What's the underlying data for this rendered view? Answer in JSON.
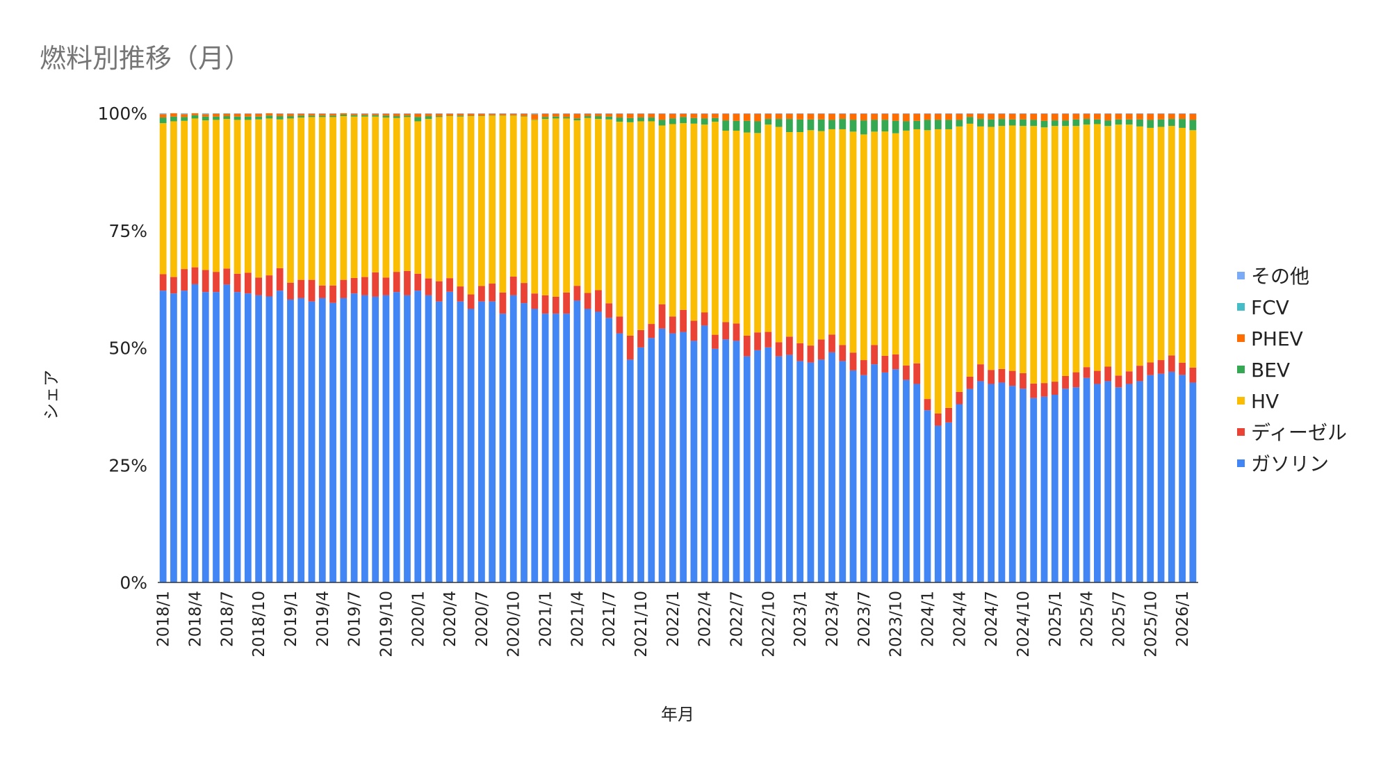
{
  "chart_data": {
    "type": "bar",
    "stacked": "percent",
    "title": "燃料別推移（月）",
    "xlabel": "年月",
    "ylabel": "シェア",
    "ylim": [
      0,
      100
    ],
    "y_ticks": [
      "0%",
      "25%",
      "50%",
      "75%",
      "100%"
    ],
    "grid": false,
    "legend_position": "right",
    "legend_order": [
      "その他",
      "FCV",
      "PHEV",
      "BEV",
      "HV",
      "ディーゼル",
      "ガソリン"
    ],
    "start_year": 2018,
    "start_month": 1,
    "label_every": 3,
    "series": [
      {
        "name": "ガソリン",
        "color": "#4285f4",
        "values": [
          62.2,
          61.6,
          62.2,
          63.5,
          61.9,
          61.9,
          63.5,
          61.9,
          61.6,
          61.2,
          60.9,
          62.2,
          60.3,
          60.6,
          59.9,
          60.6,
          59.6,
          60.6,
          61.6,
          61.2,
          60.9,
          61.2,
          61.9,
          61.2,
          62.2,
          61.2,
          59.9,
          61.9,
          59.9,
          58.3,
          59.9,
          59.9,
          57.3,
          61.2,
          59.6,
          58.3,
          57.3,
          57.3,
          57.3,
          60.6,
          58.3,
          57.7,
          56.4,
          53.1,
          47.5,
          50.1,
          52.1,
          54.1,
          53.1,
          53.4,
          51.5,
          54.7,
          49.8,
          51.8,
          51.5,
          48.2,
          49.5,
          50.1,
          48.2,
          48.5,
          47.2,
          46.9,
          47.5,
          49.1,
          47.2,
          45.2,
          44.2,
          46.5,
          45.2,
          45.9,
          43.3,
          42.3,
          36.7,
          33.4,
          34.1,
          38.0,
          41.0,
          42.9,
          42.3,
          42.6,
          41.9,
          41.3,
          39.3,
          39.6,
          40.0,
          41.3,
          41.6,
          43.6,
          42.3,
          42.9,
          41.6,
          42.3,
          42.9,
          44.2,
          44.5,
          44.9,
          44.2,
          42.6
        ]
      },
      {
        "name": "ディーゼル",
        "color": "#ea4335",
        "values": [
          3.5,
          3.5,
          4.6,
          3.6,
          4.7,
          4.3,
          3.4,
          3.9,
          4.4,
          3.8,
          4.5,
          4.8,
          3.6,
          3.9,
          4.6,
          2.7,
          3.7,
          3.9,
          3.3,
          3.9,
          5.2,
          3.8,
          4.3,
          5.2,
          3.6,
          3.6,
          4.3,
          2.9,
          3.2,
          3.1,
          3.3,
          3.8,
          4.5,
          4.0,
          4.3,
          3.3,
          3.9,
          3.6,
          4.5,
          3.2,
          3.4,
          4.6,
          3.1,
          3.6,
          5.1,
          3.7,
          3.0,
          5.2,
          3.6,
          4.7,
          4.3,
          2.8,
          3.0,
          3.7,
          3.7,
          4.4,
          3.8,
          3.3,
          3.0,
          3.9,
          3.8,
          3.6,
          4.3,
          3.8,
          3.4,
          3.8,
          3.2,
          4.1,
          3.6,
          3.2,
          3.1,
          4.4,
          2.4,
          2.6,
          3.1,
          2.6,
          2.6,
          3.6,
          3.0,
          2.9,
          3.2,
          3.3,
          3.1,
          2.9,
          2.8,
          2.7,
          3.2,
          2.3,
          2.8,
          3.1,
          2.5,
          2.7,
          3.3,
          2.7,
          2.9,
          3.5,
          2.6,
          3.2
        ]
      },
      {
        "name": "HV",
        "color": "#fbbc04",
        "values": [
          32.2,
          33.2,
          31.6,
          31.7,
          31.9,
          32.4,
          31.9,
          32.8,
          32.6,
          33.7,
          33.4,
          31.7,
          35.0,
          34.6,
          34.7,
          35.9,
          35.9,
          34.9,
          34.4,
          34.2,
          33.2,
          34.1,
          32.8,
          32.8,
          32.5,
          34.0,
          35.0,
          34.5,
          36.2,
          38.0,
          36.2,
          35.8,
          37.7,
          34.3,
          35.5,
          37.0,
          37.6,
          38.0,
          37.1,
          35.6,
          37.3,
          36.5,
          39.2,
          41.5,
          45.5,
          44.5,
          43.2,
          38.1,
          41.0,
          39.8,
          42.0,
          40.0,
          45.4,
          40.8,
          41.1,
          43.3,
          42.5,
          44.2,
          45.9,
          43.6,
          45.0,
          45.9,
          44.4,
          43.8,
          46.0,
          47.1,
          48.1,
          45.5,
          48.3,
          47.6,
          50.2,
          49.9,
          57.3,
          60.6,
          59.4,
          56.6,
          53.6,
          50.7,
          51.8,
          51.8,
          52.3,
          52.7,
          54.9,
          54.5,
          54.5,
          53.3,
          52.5,
          51.7,
          52.6,
          51.3,
          53.5,
          52.6,
          51.0,
          50.0,
          49.7,
          48.9,
          50.0,
          50.6
        ]
      },
      {
        "name": "BEV",
        "color": "#34a853",
        "values": [
          1.2,
          1.0,
          0.8,
          0.7,
          0.8,
          0.7,
          0.6,
          0.7,
          0.7,
          0.6,
          0.6,
          0.7,
          0.5,
          0.4,
          0.3,
          0.3,
          0.3,
          0.3,
          0.3,
          0.3,
          0.3,
          0.4,
          0.4,
          0.3,
          0.9,
          0.6,
          0.2,
          0.1,
          0.2,
          0.1,
          0.1,
          0.1,
          0.1,
          0.1,
          0.1,
          0.1,
          0.4,
          0.4,
          0.3,
          0.4,
          0.4,
          0.6,
          0.6,
          0.9,
          0.9,
          0.8,
          0.8,
          1.2,
          1.2,
          1.3,
          1.2,
          1.3,
          0.8,
          2.2,
          2.1,
          2.5,
          2.5,
          1.2,
          1.7,
          2.8,
          2.7,
          2.3,
          2.5,
          2.0,
          2.2,
          2.5,
          3.0,
          2.5,
          2.5,
          2.7,
          2.0,
          1.8,
          2.2,
          2.0,
          2.0,
          1.4,
          1.4,
          1.6,
          1.6,
          1.5,
          1.3,
          1.4,
          1.3,
          1.4,
          1.2,
          1.2,
          1.4,
          1.2,
          1.0,
          1.2,
          1.1,
          1.1,
          1.5,
          1.7,
          1.6,
          1.5,
          1.9,
          2.2
        ]
      },
      {
        "name": "PHEV",
        "color": "#ff6d01",
        "values": [
          0.7,
          0.7,
          0.6,
          0.4,
          0.5,
          0.6,
          0.5,
          0.6,
          0.6,
          0.6,
          0.5,
          0.5,
          0.5,
          0.4,
          0.4,
          0.4,
          0.4,
          0.3,
          0.3,
          0.3,
          0.3,
          0.4,
          0.5,
          0.4,
          0.7,
          0.5,
          0.5,
          0.4,
          0.4,
          0.4,
          0.4,
          0.3,
          0.3,
          0.3,
          0.5,
          1.1,
          0.7,
          0.6,
          0.7,
          1.0,
          0.5,
          0.5,
          0.6,
          0.8,
          0.9,
          0.8,
          0.8,
          1.3,
          1.0,
          0.7,
          0.9,
          1.0,
          0.9,
          1.4,
          1.5,
          1.5,
          1.6,
          1.1,
          1.1,
          1.1,
          1.2,
          1.2,
          1.2,
          1.3,
          1.1,
          1.3,
          1.4,
          1.3,
          1.3,
          1.5,
          1.6,
          1.5,
          1.3,
          1.3,
          1.3,
          1.3,
          0.7,
          1.1,
          1.2,
          1.1,
          1.2,
          1.2,
          1.3,
          1.5,
          1.4,
          1.4,
          1.2,
          1.1,
          1.2,
          1.4,
          1.2,
          1.2,
          1.2,
          1.3,
          1.2,
          1.1,
          1.1,
          1.3
        ]
      },
      {
        "name": "FCV",
        "color": "#46bdc6",
        "values": [
          0.1,
          0.0,
          0.1,
          0.0,
          0.1,
          0.1,
          0.1,
          0.0,
          0.0,
          0.0,
          0.0,
          0.0,
          0.0,
          0.0,
          0.0,
          0.0,
          0.0,
          0.0,
          0.0,
          0.0,
          0.0,
          0.0,
          0.0,
          0.0,
          0.0,
          0.0,
          0.0,
          0.0,
          0.0,
          0.0,
          0.0,
          0.0,
          0.0,
          0.0,
          0.0,
          0.1,
          0.0,
          0.0,
          0.0,
          0.0,
          0.0,
          0.0,
          0.0,
          0.0,
          0.0,
          0.0,
          0.0,
          0.0,
          0.0,
          0.0,
          0.0,
          0.0,
          0.0,
          0.0,
          0.0,
          0.0,
          0.0,
          0.0,
          0.0,
          0.0,
          0.0,
          0.0,
          0.0,
          0.0,
          0.0,
          0.0,
          0.0,
          0.0,
          0.0,
          0.0,
          0.0,
          0.0,
          0.0,
          0.0,
          0.0,
          0.0,
          0.0,
          0.0,
          0.0,
          0.0,
          0.0,
          0.0,
          0.0,
          0.0,
          0.0,
          0.0,
          0.0,
          0.0,
          0.0,
          0.0,
          0.0,
          0.0,
          0.0,
          0.0,
          0.0,
          0.0,
          0.0,
          0.0
        ]
      },
      {
        "name": "その他",
        "color": "#7baaf7",
        "values": [
          0.1,
          0.0,
          0.1,
          0.0,
          0.1,
          0.0,
          0.0,
          0.1,
          0.1,
          0.1,
          0.0,
          0.1,
          0.1,
          0.1,
          0.1,
          0.1,
          0.1,
          0.0,
          0.1,
          0.1,
          0.1,
          0.1,
          0.1,
          0.1,
          0.1,
          0.1,
          0.1,
          0.1,
          0.1,
          0.1,
          0.1,
          0.1,
          0.1,
          0.1,
          0.1,
          0.1,
          0.1,
          0.1,
          0.1,
          0.1,
          0.1,
          0.1,
          0.1,
          0.1,
          0.1,
          0.1,
          0.1,
          0.1,
          0.1,
          0.1,
          0.1,
          0.1,
          0.1,
          0.1,
          0.1,
          0.1,
          0.1,
          0.1,
          0.1,
          0.1,
          0.1,
          0.1,
          0.1,
          0.1,
          0.1,
          0.1,
          0.1,
          0.1,
          0.1,
          0.1,
          0.1,
          0.1,
          0.1,
          0.1,
          0.1,
          0.1,
          0.1,
          0.1,
          0.1,
          0.1,
          0.1,
          0.1,
          0.1,
          0.1,
          0.1,
          0.1,
          0.1,
          0.1,
          0.1,
          0.1,
          0.1,
          0.1,
          0.1,
          0.1,
          0.1,
          0.1,
          0.1,
          0.1
        ]
      }
    ]
  }
}
